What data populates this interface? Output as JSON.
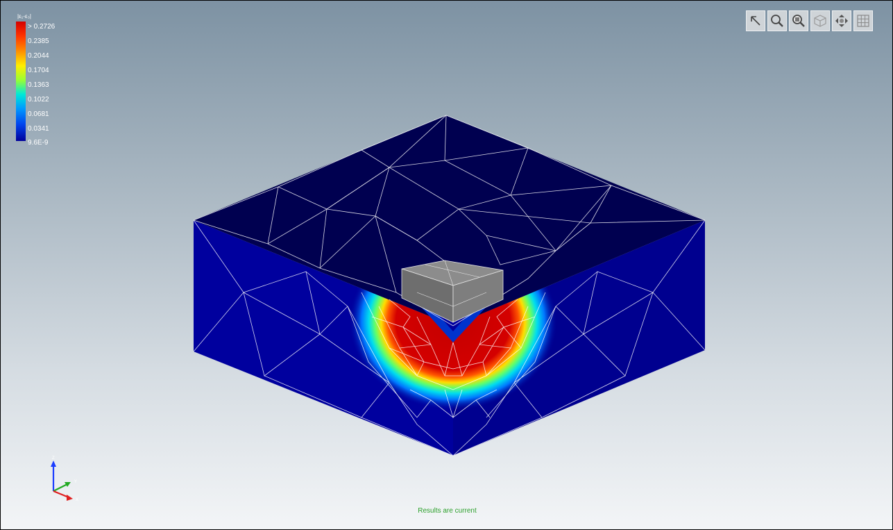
{
  "legend": {
    "title": "|ε₁-ε₃|",
    "labels": [
      "> 0.2726",
      "0.2385",
      "0.2044",
      "0.1704",
      "0.1363",
      "0.1022",
      "0.0681",
      "0.0341",
      "9.6E-9"
    ]
  },
  "toolbar": {
    "tools": [
      "select-tool",
      "zoom-tool",
      "zoom-area-tool",
      "view-3d-tool",
      "pan-tool",
      "mesh-display-tool"
    ]
  },
  "status": {
    "text": "Results are current"
  },
  "colors": {
    "deep_blue": "#00009a",
    "top_face": "#000050",
    "red": "#d40000",
    "indenter": "#7a7a7a",
    "status_green": "#2ca02c"
  },
  "axes": {
    "x": "X",
    "y": "Y",
    "z": "Z"
  }
}
